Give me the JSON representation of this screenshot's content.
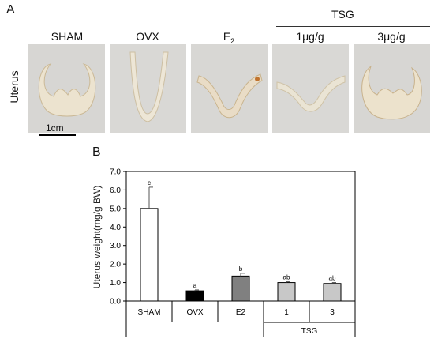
{
  "panel_a": {
    "letter": "A",
    "row_label": "Uterus",
    "group_header": "TSG",
    "columns": [
      "SHAM",
      "OVX",
      "E",
      "1μg/g",
      "3μg/g"
    ],
    "e2_subscript": "2",
    "scale_bar_label": "1cm"
  },
  "panel_b": {
    "letter": "B",
    "ylabel": "Uterus weight(mg/g BW)",
    "group_label": "TSG"
  },
  "chart_data": {
    "type": "bar",
    "categories": [
      "SHAM",
      "OVX",
      "E2",
      "1",
      "3"
    ],
    "values": [
      5.0,
      0.55,
      1.35,
      1.0,
      0.95
    ],
    "errors": [
      1.15,
      0.05,
      0.15,
      0.05,
      0.05
    ],
    "sig_letters": [
      "c",
      "a",
      "b",
      "ab",
      "ab"
    ],
    "bar_colors": [
      "#ffffff",
      "#000000",
      "#808080",
      "#c8c8c8",
      "#c8c8c8"
    ],
    "ylim": [
      0,
      7
    ],
    "yticks": [
      "0.0",
      "1.0",
      "2.0",
      "3.0",
      "4.0",
      "5.0",
      "6.0",
      "7.0"
    ],
    "ylabel": "Uterus weight(mg/g BW)",
    "group_label": "TSG",
    "grid": false
  }
}
